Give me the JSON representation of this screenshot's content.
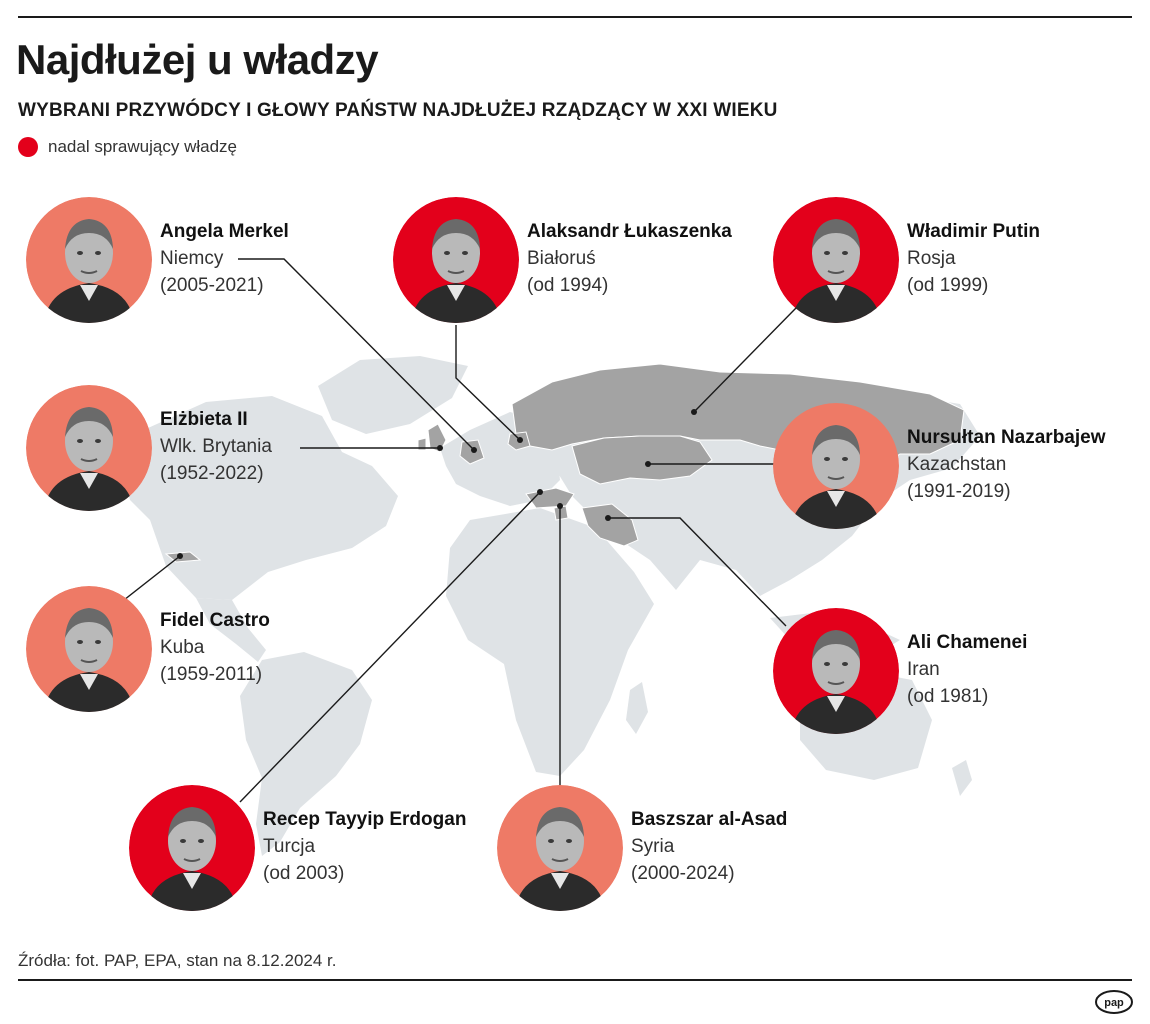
{
  "title": "Najdłużej u władzy",
  "subtitle": "WYBRANI PRZYWÓDCY I GŁOWY PAŃSTW NAJDŁUŻEJ RZĄDZĄCY W XXI WIEKU",
  "legend": {
    "label": "nadal sprawujący władzę",
    "color": "#e3001b"
  },
  "colors": {
    "active": "#e3001b",
    "former": "#ee7a66",
    "highlight_land": "#a3a3a3",
    "land": "#dfe3e6"
  },
  "leaders": [
    {
      "name": "Angela Merkel",
      "country": "Niemcy",
      "period": "(2005-2021)",
      "active": false,
      "icon": "portrait-merkel"
    },
    {
      "name": "Alaksandr Łukaszenka",
      "country": "Białoruś",
      "period": "(od 1994)",
      "active": true,
      "icon": "portrait-lukaszenka"
    },
    {
      "name": "Władimir Putin",
      "country": "Rosja",
      "period": "(od 1999)",
      "active": true,
      "icon": "portrait-putin"
    },
    {
      "name": "Elżbieta II",
      "country": "Wlk. Brytania",
      "period": "(1952-2022)",
      "active": false,
      "icon": "portrait-elzbieta"
    },
    {
      "name": "Nursułtan Nazarbajew",
      "country": "Kazachstan",
      "period": "(1991-2019)",
      "active": false,
      "icon": "portrait-nazarbajew"
    },
    {
      "name": "Fidel Castro",
      "country": "Kuba",
      "period": "(1959-2011)",
      "active": false,
      "icon": "portrait-castro"
    },
    {
      "name": "Ali Chamenei",
      "country": "Iran",
      "period": "(od 1981)",
      "active": true,
      "icon": "portrait-chamenei"
    },
    {
      "name": "Recep Tayyip Erdogan",
      "country": "Turcja",
      "period": "(od 2003)",
      "active": true,
      "icon": "portrait-erdogan"
    },
    {
      "name": "Baszszar al-Asad",
      "country": "Syria",
      "period": "(2000-2024)",
      "active": false,
      "icon": "portrait-asad"
    }
  ],
  "source": "Źródła: fot. PAP, EPA, stan na 8.12.2024 r.",
  "logo": "pap"
}
